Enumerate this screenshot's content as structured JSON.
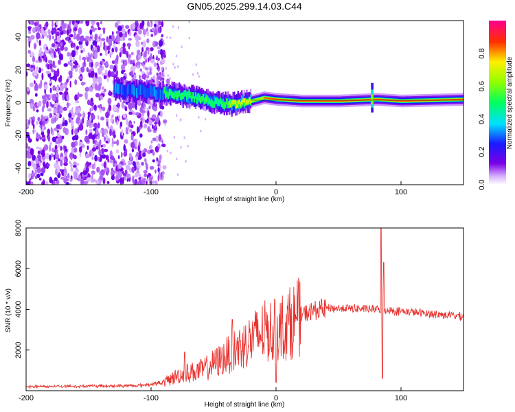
{
  "title": "GN05.2025.299.14.03.C44",
  "colors": {
    "snr_line": "#e8332f",
    "wave_core": "#ff2a2a"
  },
  "chart_data": [
    {
      "type": "heatmap",
      "title": "GN05.2025.299.14.03.C44",
      "xlabel": "Height of straight line (km)",
      "ylabel": "Frequency (Hz)",
      "xlim": [
        -200,
        150
      ],
      "ylim": [
        -50,
        50
      ],
      "x_ticks": [
        -200,
        -100,
        0,
        100
      ],
      "y_ticks": [
        -40,
        -20,
        0,
        20,
        40
      ],
      "colorbar": {
        "label": "Normalized spectral amplitude",
        "range": [
          0,
          1
        ],
        "ticks": [
          "0.0",
          "0.2",
          "0.4",
          "0.6",
          "0.8"
        ],
        "colormap": "rainbow (purple-blue-cyan-green-yellow-red-magenta)"
      },
      "ridge": {
        "x": [
          -130,
          -110,
          -90,
          -70,
          -50,
          -35,
          -20,
          -10,
          0,
          20,
          50,
          80,
          100,
          150
        ],
        "freq": [
          8,
          7,
          6,
          4,
          0,
          -1,
          1,
          3,
          2,
          1,
          1,
          2,
          1,
          2
        ],
        "peak_amplitude": [
          0.25,
          0.35,
          0.45,
          0.5,
          0.5,
          0.7,
          0.8,
          0.85,
          0.9,
          0.95,
          0.95,
          0.9,
          0.95,
          0.9
        ]
      },
      "noise_region_x": [
        -200,
        -90
      ]
    },
    {
      "type": "line",
      "xlabel": "Height of straight line (km)",
      "ylabel": "SNR (10 * v/v)",
      "xlim": [
        -200,
        150
      ],
      "ylim": [
        0,
        8000
      ],
      "x_ticks": [
        -200,
        -100,
        0,
        100
      ],
      "y_ticks": [
        2000,
        4000,
        6000,
        8000
      ],
      "series": [
        {
          "name": "SNR",
          "envelope_x": [
            -200,
            -110,
            -90,
            -80,
            -70,
            -60,
            -50,
            -40,
            -30,
            -20,
            -10,
            0,
            10,
            20,
            30,
            40,
            60,
            80,
            100,
            120,
            150
          ],
          "envelope_y": [
            200,
            250,
            400,
            700,
            900,
            1000,
            1300,
            1700,
            2100,
            2500,
            2900,
            3000,
            3300,
            3700,
            3950,
            4050,
            4050,
            4000,
            3900,
            3800,
            3650
          ],
          "spikes": [
            {
              "x": -73,
              "y": 1900
            },
            {
              "x": -35,
              "y": 3500
            },
            {
              "x": -1,
              "y": 4500
            },
            {
              "x": 0,
              "y": 400
            },
            {
              "x": 84,
              "y": 8000
            },
            {
              "x": 85,
              "y": 600
            },
            {
              "x": 86,
              "y": 6300
            }
          ]
        }
      ]
    }
  ]
}
